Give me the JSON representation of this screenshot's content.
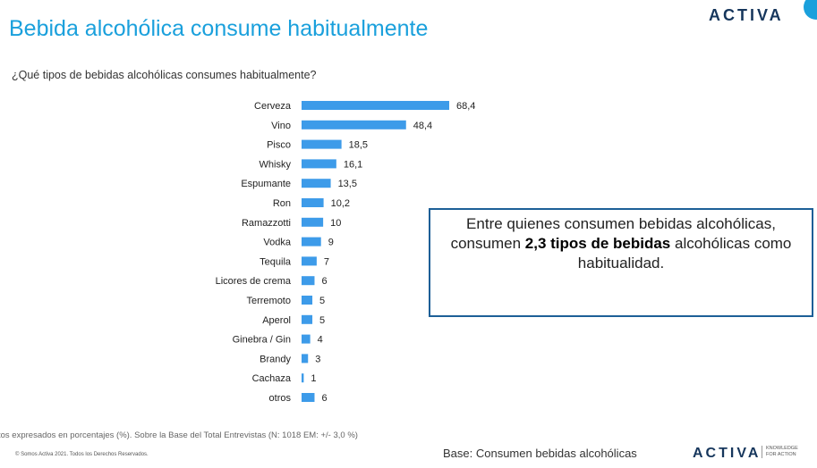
{
  "header": {
    "title": "Bebida alcohólica consume habitualmente",
    "brand": "ACTIVA"
  },
  "question": "¿Qué tipos de bebidas alcohólicas consumes habitualmente?",
  "callout": {
    "line1": "Entre quienes consumen bebidas alcohólicas,",
    "line2_pre": "consumen ",
    "line2_bold": "2,3 tipos de bebidas",
    "line2_post": " alcohólicas como",
    "line3": "habitualidad."
  },
  "footer": {
    "note": "tos expresados en porcentajes (%). Sobre la Base del Total Entrevistas (N: 1018 EM: +/- 3,0 %)",
    "copyright": "© Somos Activa 2021. Todos los Derechos Reservados.",
    "base": "Base: Consumen bebidas alcohólicas",
    "brand": "ACTIVA",
    "tagline_1": "KNOWLEDGE",
    "tagline_2": "FOR ACTION"
  },
  "colors": {
    "bar": "#3d9be9",
    "title": "#1aa0dc",
    "callout_border": "#1d5f97",
    "brand_navy": "#16365c",
    "brand_red": "#e84c3d"
  },
  "chart_data": {
    "type": "bar",
    "orientation": "horizontal",
    "categories": [
      "Cerveza",
      "Vino",
      "Pisco",
      "Whisky",
      "Espumante",
      "Ron",
      "Ramazzotti",
      "Vodka",
      "Tequila",
      "Licores de crema",
      "Terremoto",
      "Aperol",
      "Ginebra / Gin",
      "Brandy",
      "Cachaza",
      "otros"
    ],
    "values": [
      68.4,
      48.4,
      18.5,
      16.1,
      13.5,
      10.2,
      10,
      9,
      7,
      6,
      5,
      5,
      4,
      3,
      1,
      6
    ],
    "labels": [
      "68,4",
      "48,4",
      "18,5",
      "16,1",
      "13,5",
      "10,2",
      "10",
      "9",
      "7",
      "6",
      "5",
      "5",
      "4",
      "3",
      "1",
      "6"
    ],
    "xlim": [
      0,
      68.4
    ],
    "grid": false,
    "legend": "none"
  }
}
